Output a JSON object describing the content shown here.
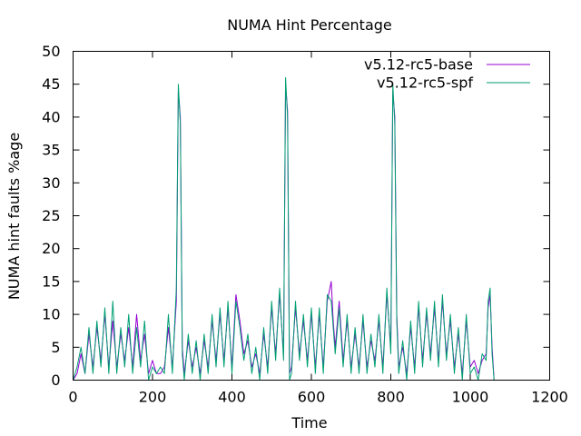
{
  "chart_data": {
    "type": "line",
    "title": "NUMA Hint Percentage",
    "xlabel": "Time",
    "ylabel": "NUMA hint faults %age",
    "xlim": [
      0,
      1200
    ],
    "ylim": [
      0,
      50
    ],
    "xticks": [
      0,
      200,
      400,
      600,
      800,
      1000,
      1200
    ],
    "yticks": [
      0,
      5,
      10,
      15,
      20,
      25,
      30,
      35,
      40,
      45,
      50
    ],
    "grid": false,
    "legend": "top-right",
    "series": [
      {
        "name": "v5.12-rc5-base",
        "color": "#9400d3",
        "x": [
          0,
          10,
          20,
          30,
          40,
          50,
          60,
          70,
          80,
          90,
          100,
          110,
          120,
          130,
          140,
          150,
          160,
          170,
          180,
          190,
          200,
          210,
          220,
          230,
          240,
          250,
          260,
          265,
          270,
          275,
          280,
          290,
          300,
          310,
          320,
          330,
          340,
          350,
          360,
          370,
          380,
          390,
          400,
          410,
          420,
          430,
          440,
          450,
          460,
          470,
          480,
          490,
          500,
          510,
          520,
          530,
          535,
          540,
          545,
          550,
          560,
          570,
          580,
          590,
          600,
          610,
          620,
          630,
          640,
          650,
          655,
          660,
          670,
          680,
          690,
          700,
          710,
          720,
          730,
          740,
          750,
          760,
          770,
          780,
          790,
          800,
          805,
          810,
          815,
          820,
          830,
          840,
          850,
          860,
          870,
          880,
          890,
          900,
          910,
          920,
          930,
          940,
          950,
          960,
          970,
          980,
          990,
          1000,
          1010,
          1020,
          1030,
          1040,
          1045,
          1050,
          1055,
          1060
        ],
        "values": [
          0,
          1,
          4,
          1,
          7,
          2,
          8,
          3,
          10,
          2,
          9,
          2,
          7,
          3,
          8,
          2,
          10,
          3,
          7,
          1,
          3,
          1,
          1,
          2,
          8,
          2,
          12,
          44,
          40,
          5,
          1,
          6,
          2,
          5,
          1,
          6,
          2,
          9,
          3,
          10,
          3,
          11,
          2,
          13,
          9,
          4,
          6,
          2,
          4,
          1,
          7,
          2,
          11,
          4,
          13,
          4,
          45,
          41,
          1,
          2,
          11,
          4,
          9,
          3,
          10,
          2,
          10,
          2,
          12,
          15,
          9,
          5,
          12,
          3,
          9,
          2,
          7,
          2,
          9,
          2,
          6,
          3,
          9,
          2,
          13,
          5,
          44,
          40,
          10,
          2,
          5,
          1,
          8,
          2,
          11,
          3,
          10,
          4,
          11,
          3,
          12,
          4,
          9,
          2,
          7,
          1,
          9,
          2,
          3,
          1,
          3,
          4,
          11,
          13,
          5,
          0
        ]
      },
      {
        "name": "v5.12-rc5-spf",
        "color": "#009e73",
        "x": [
          0,
          10,
          20,
          30,
          40,
          50,
          60,
          70,
          80,
          90,
          100,
          110,
          120,
          130,
          140,
          150,
          160,
          170,
          180,
          190,
          200,
          210,
          220,
          230,
          240,
          250,
          260,
          265,
          270,
          275,
          280,
          290,
          300,
          310,
          320,
          330,
          340,
          350,
          360,
          370,
          380,
          390,
          400,
          410,
          420,
          430,
          440,
          450,
          460,
          470,
          480,
          490,
          500,
          510,
          520,
          530,
          535,
          540,
          545,
          550,
          560,
          570,
          580,
          590,
          600,
          610,
          620,
          630,
          640,
          650,
          655,
          660,
          670,
          680,
          690,
          700,
          710,
          720,
          730,
          740,
          750,
          760,
          770,
          780,
          790,
          800,
          805,
          810,
          815,
          820,
          830,
          840,
          850,
          860,
          870,
          880,
          890,
          900,
          910,
          920,
          930,
          940,
          950,
          960,
          970,
          980,
          990,
          1000,
          1010,
          1020,
          1030,
          1040,
          1045,
          1050,
          1055,
          1060
        ],
        "values": [
          0,
          2,
          5,
          1,
          8,
          1,
          9,
          2,
          11,
          1,
          12,
          1,
          8,
          2,
          10,
          1,
          8,
          2,
          9,
          0,
          2,
          1,
          2,
          1,
          10,
          1,
          14,
          45,
          39,
          4,
          0,
          7,
          1,
          6,
          0,
          7,
          1,
          10,
          2,
          11,
          2,
          12,
          1,
          12,
          8,
          3,
          7,
          1,
          5,
          0,
          8,
          1,
          12,
          3,
          14,
          3,
          46,
          40,
          0,
          1,
          12,
          3,
          10,
          2,
          11,
          1,
          11,
          1,
          13,
          12,
          8,
          4,
          11,
          2,
          10,
          1,
          8,
          1,
          10,
          1,
          7,
          2,
          10,
          1,
          14,
          4,
          45,
          39,
          9,
          1,
          6,
          0,
          9,
          1,
          12,
          2,
          11,
          3,
          12,
          2,
          13,
          3,
          10,
          1,
          8,
          0,
          10,
          1,
          2,
          0,
          4,
          3,
          12,
          14,
          4,
          0
        ]
      }
    ]
  }
}
